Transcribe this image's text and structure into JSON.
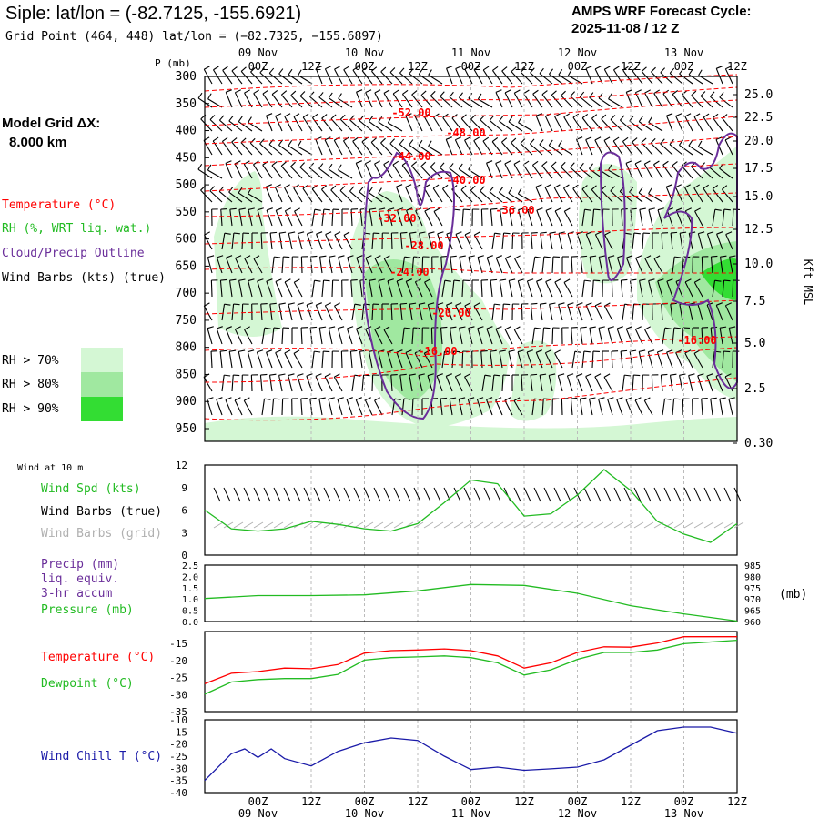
{
  "header": {
    "title": "Siple:  lat/lon = (-82.7125, -155.6921)",
    "subtitle": "Grid Point (464, 448) lat/lon = (−82.7325, −155.6897)",
    "cycle_label": "AMPS WRF Forecast Cycle:",
    "cycle_value": "2025-11-08 / 12  Z",
    "grid_label": "Model Grid ΔX:",
    "grid_value": "8.000 km"
  },
  "legend": {
    "temperature": "Temperature (°C)",
    "rh": "RH (%, WRT liq. wat.)",
    "cloud": "Cloud/Precip Outline",
    "wind": "Wind Barbs (kts) (true)",
    "rh70": "RH > 70%",
    "rh80": "RH > 80%",
    "rh90": "RH > 90%"
  },
  "colors": {
    "temp": "#ff0000",
    "rh": "#22bb22",
    "cloud": "#6a2e9a",
    "wind": "#000000",
    "grid_barbs": "#b0b0b0",
    "chill": "#1a1aa8",
    "rh70": "#d4f7d4",
    "rh80": "#a0e8a0",
    "rh90": "#33dd33"
  },
  "time_axis": {
    "ticks": [
      "00Z",
      "12Z",
      "00Z",
      "12Z",
      "00Z",
      "12Z",
      "00Z",
      "12Z",
      "00Z",
      "12Z"
    ],
    "dates": [
      "09 Nov",
      "10 Nov",
      "11 Nov",
      "12 Nov",
      "13 Nov"
    ]
  },
  "chart_data": [
    {
      "type": "area",
      "name": "cross-section",
      "ylabel": "P (mb)",
      "y2label": "Kft MSL",
      "pressure_ticks": [
        "300",
        "350",
        "400",
        "450",
        "500",
        "550",
        "600",
        "650",
        "700",
        "750",
        "800",
        "850",
        "900",
        "950"
      ],
      "height_ticks": [
        "25.0",
        "22.5",
        "20.0",
        "17.5",
        "15.0",
        "12.5",
        "10.0",
        "7.5",
        "5.0",
        "2.5",
        "0.30"
      ],
      "isotherm_labels": [
        "-52.00",
        "-48.00",
        "-44.00",
        "-40.00",
        "-36.00",
        "-32.00",
        "-28.00",
        "-24.00",
        "-20.00",
        "-16.00",
        "-16.00"
      ]
    },
    {
      "type": "line",
      "name": "wind-10m",
      "header": "Wind at 10 m",
      "labels": [
        "Wind Spd (kts)",
        "Wind Barbs (true)",
        "Wind Barbs (grid)"
      ],
      "ylim": [
        0,
        12
      ],
      "yticks": [
        "12",
        "9",
        "6",
        "3",
        "0"
      ],
      "x_hours": [
        0,
        6,
        12,
        18,
        24,
        30,
        36,
        42,
        48,
        54,
        60,
        66,
        72,
        78,
        84,
        90,
        96,
        102,
        108,
        114,
        120
      ],
      "speed": [
        6,
        3.5,
        3.2,
        3.5,
        4.5,
        4.1,
        3.5,
        3.2,
        4.2,
        7,
        10,
        9.5,
        5.2,
        5.5,
        8,
        11.4,
        8.6,
        4.5,
        2.8,
        1.7,
        4.2
      ]
    },
    {
      "type": "line",
      "name": "precip-pressure",
      "labels": [
        "Precip (mm)",
        "liq. equiv.",
        "3-hr accum",
        "Pressure (mb)"
      ],
      "y_left_ticks": [
        "2.5",
        "2.0",
        "1.5",
        "1.0",
        "0.5",
        "0.0"
      ],
      "y_right_ticks": [
        "985",
        "980",
        "975",
        "970",
        "965",
        "960"
      ],
      "y_right_unit": "(mb)",
      "ylim": [
        960,
        985
      ],
      "x_hours": [
        0,
        12,
        24,
        36,
        48,
        60,
        72,
        84,
        96,
        108,
        120
      ],
      "pressure": [
        970.2,
        971.5,
        971.5,
        971.8,
        973.6,
        976.4,
        976.0,
        972.5,
        967.0,
        963.4,
        960.2
      ]
    },
    {
      "type": "line",
      "name": "temperature-dewpoint",
      "labels": [
        "Temperature (°C)",
        "Dewpoint (°C)"
      ],
      "yticks": [
        "-15",
        "-20",
        "-25",
        "-30",
        "-35"
      ],
      "ylim": [
        -35,
        -12
      ],
      "x_hours": [
        0,
        6,
        12,
        18,
        24,
        30,
        36,
        42,
        48,
        54,
        60,
        66,
        72,
        78,
        84,
        90,
        96,
        102,
        108,
        114,
        120
      ],
      "temperature": [
        -27,
        -24,
        -23.5,
        -22.5,
        -22.7,
        -21.5,
        -18.2,
        -17.5,
        -17.3,
        -17,
        -17.5,
        -19,
        -22.5,
        -21,
        -18,
        -16.4,
        -16.5,
        -15.3,
        -13.5,
        -13.5,
        -13.5
      ],
      "dewpoint": [
        -30,
        -26.5,
        -25.8,
        -25.5,
        -25.5,
        -24.3,
        -20.2,
        -19.5,
        -19.3,
        -19,
        -19.5,
        -21,
        -24.5,
        -23,
        -20,
        -18,
        -18,
        -17.3,
        -15.5,
        -15,
        -14.5
      ]
    },
    {
      "type": "line",
      "name": "wind-chill",
      "labels": [
        "Wind Chill T (°C)"
      ],
      "yticks": [
        "-10",
        "-15",
        "-20",
        "-25",
        "-30",
        "-35",
        "-40"
      ],
      "ylim": [
        -40,
        -10
      ],
      "x_hours": [
        0,
        6,
        9,
        12,
        15,
        18,
        24,
        30,
        36,
        42,
        48,
        54,
        60,
        66,
        72,
        78,
        84,
        90,
        96,
        102,
        108,
        114,
        120
      ],
      "wind_chill": [
        -35,
        -24,
        -22,
        -25.5,
        -22,
        -26,
        -29,
        -23,
        -19.5,
        -17.5,
        -18.5,
        -25,
        -30.5,
        -29.5,
        -30.8,
        -30.2,
        -29.5,
        -26.5,
        -20.5,
        -14.5,
        -13,
        -13,
        -15.5
      ]
    }
  ]
}
